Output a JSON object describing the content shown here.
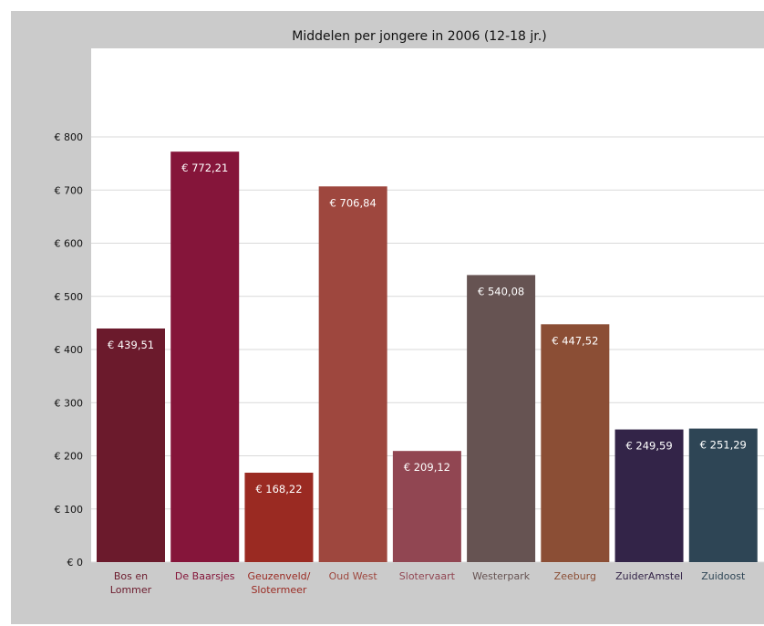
{
  "chart_data": {
    "type": "bar",
    "title": "Middelen per jongere in 2006 (12-18 jr.)",
    "xlabel": "",
    "ylabel": "",
    "ylim": [
      0,
      800
    ],
    "yticks": [
      "€ 0",
      "€ 100",
      "€ 200",
      "€ 300",
      "€ 400",
      "€ 500",
      "€ 600",
      "€ 700",
      "€ 800"
    ],
    "grid": true,
    "categories": [
      [
        "Bos en",
        "Lommer"
      ],
      [
        "De Baarsjes"
      ],
      [
        "Geuzenveld/",
        "Slotermeer"
      ],
      [
        "Oud West"
      ],
      [
        "Slotervaart"
      ],
      [
        "Westerpark"
      ],
      [
        "Zeeburg"
      ],
      [
        "ZuiderAmstel"
      ],
      [
        "Zuidoost"
      ]
    ],
    "values": [
      439.51,
      772.21,
      168.22,
      706.84,
      209.12,
      540.08,
      447.52,
      249.59,
      251.29
    ],
    "value_labels": [
      "€ 439,51",
      "€ 772,21",
      "€ 168,22",
      "€ 706,84",
      "€ 209,12",
      "€ 540,08",
      "€ 447,52",
      "€ 249,59",
      "€ 251,29"
    ],
    "bar_colors": [
      "#6b1a2c",
      "#85153a",
      "#9a2a22",
      "#9e473e",
      "#914652",
      "#665352",
      "#8b4e35",
      "#332448",
      "#2e4555"
    ],
    "label_colors": [
      "#6b1a2c",
      "#85153a",
      "#9a2a22",
      "#9e473e",
      "#914652",
      "#665352",
      "#8b4e35",
      "#332448",
      "#2e4555"
    ]
  }
}
